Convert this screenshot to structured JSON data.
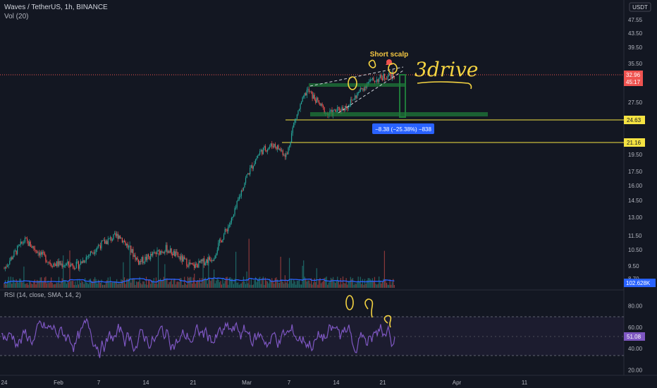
{
  "header": {
    "symbol_title": "Waves / TetherUS, 1h, BINANCE",
    "volume_label": "Vol (20)",
    "currency": "USDT"
  },
  "price_axis": {
    "ticks": [
      "47.55",
      "43.50",
      "39.50",
      "35.50",
      "27.50",
      "24.63",
      "21.16",
      "19.50",
      "17.50",
      "16.00",
      "14.50",
      "13.00",
      "11.50",
      "10.50",
      "9.50",
      "8.70"
    ]
  },
  "badges": {
    "last_price": "32.96",
    "countdown": "45:17",
    "level_upper": "24.63",
    "level_lower": "21.16",
    "volume_value": "102.628K",
    "rsi_value": "51.08"
  },
  "rsi": {
    "label": "RSI (14, close, SMA, 14, 2)",
    "ticks": [
      "80.00",
      "60.00",
      "40.00",
      "20.00"
    ]
  },
  "time_axis": {
    "labels": [
      "24",
      "Feb",
      "7",
      "14",
      "21",
      "Mar",
      "7",
      "14",
      "21",
      "Apr",
      "11"
    ]
  },
  "annotations": {
    "short_scalp": "Short scalp",
    "three_drive": "3drive",
    "measure": "−8.38 (−25.38%) −838"
  },
  "colors": {
    "background": "#131722",
    "up": "#26a69a",
    "down": "#ef5350",
    "level_line": "#f5e342",
    "rsi_line": "#7e57c2",
    "volume_ma": "#2962ff",
    "measure_box": "#2962ff"
  },
  "chart_data": [
    {
      "type": "candlestick",
      "title": "Waves / TetherUS, 1h, BINANCE",
      "ylim": [
        8.5,
        50
      ],
      "y_scale": "log",
      "key_levels": [
        24.63,
        21.16
      ],
      "last_price": 32.96,
      "approx_close_path": [
        {
          "x": "Jan 24",
          "y": 9.3
        },
        {
          "x": "Jan 27",
          "y": 11.2
        },
        {
          "x": "Jan 31",
          "y": 9.6
        },
        {
          "x": "Feb 4",
          "y": 9.5
        },
        {
          "x": "Feb 7",
          "y": 10.8
        },
        {
          "x": "Feb 10",
          "y": 11.6
        },
        {
          "x": "Feb 13",
          "y": 9.7
        },
        {
          "x": "Feb 17",
          "y": 10.6
        },
        {
          "x": "Feb 21",
          "y": 9.4
        },
        {
          "x": "Feb 24",
          "y": 10.0
        },
        {
          "x": "Feb 27",
          "y": 13.0
        },
        {
          "x": "Mar 1",
          "y": 17.0
        },
        {
          "x": "Mar 3",
          "y": 20.0
        },
        {
          "x": "Mar 5",
          "y": 21.0
        },
        {
          "x": "Mar 7",
          "y": 19.5
        },
        {
          "x": "Mar 8",
          "y": 24.0
        },
        {
          "x": "Mar 10",
          "y": 30.0
        },
        {
          "x": "Mar 13",
          "y": 25.5
        },
        {
          "x": "Mar 16",
          "y": 27.0
        },
        {
          "x": "Mar 19",
          "y": 31.5
        },
        {
          "x": "Mar 22",
          "y": 33.0
        },
        {
          "x": "Mar 23",
          "y": 32.96
        }
      ]
    },
    {
      "type": "line",
      "title": "RSI (14, close, SMA, 14, 2)",
      "ylim": [
        15,
        95
      ],
      "band": [
        30,
        70
      ],
      "last_value": 51.08
    },
    {
      "type": "bar",
      "title": "Vol (20)",
      "last_value": "102.628K"
    }
  ]
}
